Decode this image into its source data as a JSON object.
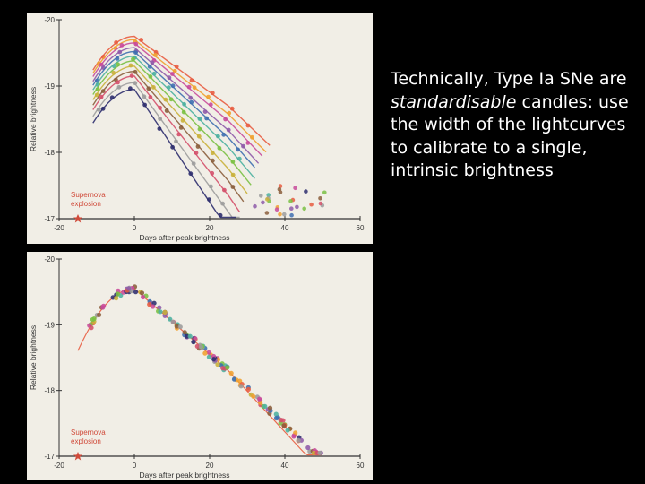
{
  "caption": {
    "part1": "Technically, Type Ia SNe are ",
    "emphasis": "standardisable",
    "part2": " candles: use the width of the lightcurves to calibrate to a single, intrinsic brightness"
  },
  "colors": {
    "slide_background": "#000000",
    "panel_background": "#f1eee6",
    "axis": "#333333",
    "annotation": "#d04a3a",
    "series": [
      "#e85c40",
      "#f0a030",
      "#c84a9a",
      "#8e5aa8",
      "#3e6fb0",
      "#4bb0a0",
      "#7ac043",
      "#c9b03a",
      "#8b5e3c",
      "#d4506a",
      "#9c9c9c",
      "#2e2e6e"
    ]
  },
  "chart_data": [
    {
      "type": "scatter",
      "title": "",
      "xlabel": "Days after peak brightness",
      "ylabel": "Relative brightness",
      "xlim": [
        -20,
        60
      ],
      "ylim": [
        -17,
        -20
      ],
      "x_ticks": [
        "-20",
        "0",
        "20",
        "40",
        "60"
      ],
      "y_ticks": [
        "-20",
        "-19",
        "-18",
        "-17"
      ],
      "annotation": "Supernova explosion",
      "annotation_marker": {
        "x": -15,
        "y": -17
      },
      "curve_peaks": [
        -19.75,
        -19.7,
        -19.65,
        -19.58,
        -19.52,
        -19.45,
        -19.38,
        -19.3,
        -19.22,
        -19.15,
        -19.05,
        -18.95
      ],
      "curve_decline_rates": [
        0.042,
        0.045,
        0.047,
        0.05,
        0.052,
        0.055,
        0.058,
        0.062,
        0.066,
        0.072,
        0.078,
        0.085
      ]
    },
    {
      "type": "scatter",
      "title": "",
      "xlabel": "Days after peak brightness",
      "ylabel": "Relative brightness",
      "xlim": [
        -20,
        60
      ],
      "ylim": [
        -17,
        -20
      ],
      "x_ticks": [
        "-20",
        "0",
        "20",
        "40",
        "60"
      ],
      "y_ticks": [
        "-20",
        "-19",
        "-18",
        "-17"
      ],
      "annotation": "Supernova explosion",
      "annotation_marker": {
        "x": -15,
        "y": -17
      },
      "curve_peaks": [
        -19.55
      ],
      "curve_decline_rates": [
        0.05
      ]
    }
  ]
}
